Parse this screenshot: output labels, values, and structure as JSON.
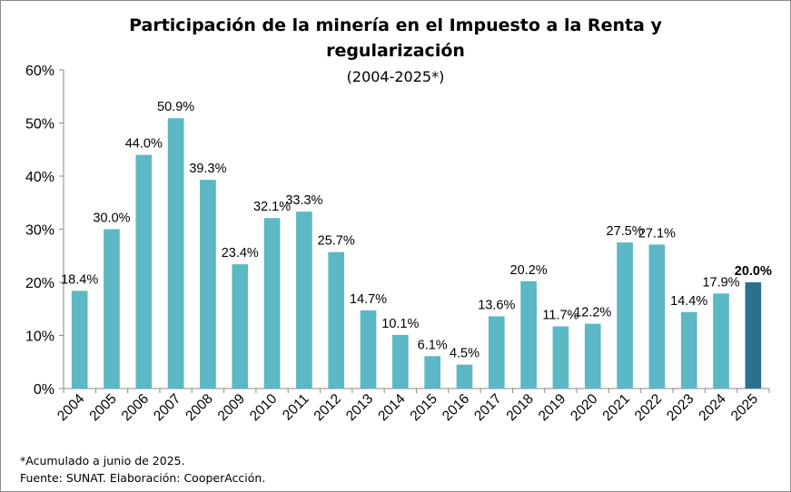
{
  "chart_data": {
    "type": "bar",
    "title_lines": [
      "Participación de la minería en el Impuesto a la Renta y",
      "regularización"
    ],
    "subtitle": "(2004-2025*)",
    "categories": [
      "2004",
      "2005",
      "2006",
      "2007",
      "2008",
      "2009",
      "2010",
      "2011",
      "2012",
      "2013",
      "2014",
      "2015",
      "2016",
      "2017",
      "2018",
      "2019",
      "2020",
      "2021",
      "2022",
      "2023",
      "2024",
      "2025"
    ],
    "values": [
      18.4,
      30.0,
      44.0,
      50.9,
      39.3,
      23.4,
      32.1,
      33.3,
      25.7,
      14.7,
      10.1,
      6.1,
      4.5,
      13.6,
      20.2,
      11.7,
      12.2,
      27.5,
      27.1,
      14.4,
      17.9,
      20.0
    ],
    "data_labels": [
      "18.4%",
      "30.0%",
      "44.0%",
      "50.9%",
      "39.3%",
      "23.4%",
      "32.1%",
      "33.3%",
      "25.7%",
      "14.7%",
      "10.1%",
      "6.1%",
      "4.5%",
      "13.6%",
      "20.2%",
      "11.7%",
      "12.2%",
      "27.5%",
      "27.1%",
      "14.4%",
      "17.9%",
      "20.0%"
    ],
    "highlight_category": "2025",
    "ylim": [
      0,
      60
    ],
    "yticks": [
      0,
      10,
      20,
      30,
      40,
      50,
      60
    ],
    "ytick_labels": [
      "0%",
      "10%",
      "20%",
      "30%",
      "40%",
      "50%",
      "60%"
    ],
    "xlabel": "",
    "ylabel": "",
    "grid": false,
    "colors": {
      "bar": "#5bb8c4",
      "highlight": "#2a7190",
      "axis": "#888888"
    }
  },
  "footnotes": {
    "note": "*Acumulado a junio de 2025.",
    "source": "Fuente: SUNAT. Elaboración: CooperAcción."
  }
}
